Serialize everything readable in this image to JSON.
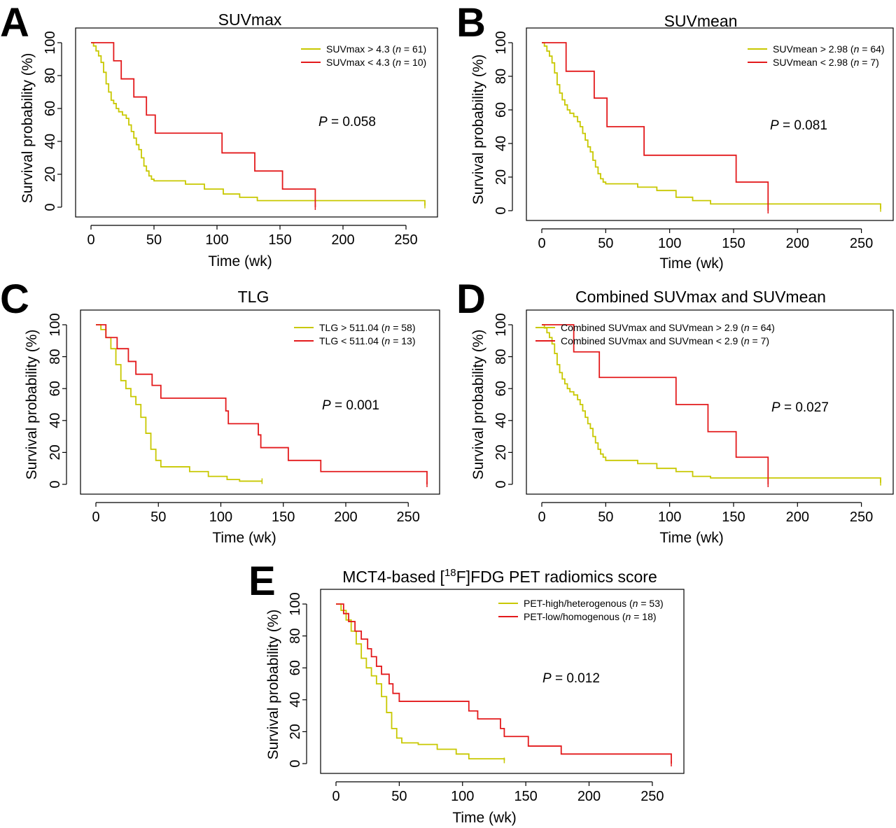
{
  "colors": {
    "high": "#C8C800",
    "low": "#E31A1C",
    "axis": "#000000"
  },
  "chart_data": [
    {
      "panel": "A",
      "type": "line",
      "title": "SUVmax",
      "xlabel": "Time (wk)",
      "ylabel": "Survival probability (%)",
      "xlim": [
        0,
        265
      ],
      "ylim": [
        0,
        100
      ],
      "xticks": [
        "0",
        "50",
        "100",
        "150",
        "200",
        "250"
      ],
      "yticks": [
        "0",
        "20",
        "40",
        "60",
        "80",
        "100"
      ],
      "legend_position": "top-right",
      "p_label": "P = 0.058",
      "series": [
        {
          "name": "SUVmax > 4.3 (n = 61)",
          "legend_pre": "SUVmax > 4.3 (",
          "legend_n": "n",
          "legend_post": " = 61)",
          "color": "#C8C800",
          "x": [
            0,
            2,
            4,
            6,
            8,
            10,
            12,
            14,
            16,
            18,
            20,
            22,
            25,
            28,
            30,
            32,
            34,
            36,
            38,
            40,
            42,
            44,
            46,
            48,
            50,
            60,
            75,
            90,
            105,
            118,
            132,
            265
          ],
          "y": [
            100,
            98,
            95,
            92,
            88,
            82,
            75,
            70,
            65,
            63,
            60,
            58,
            56,
            54,
            50,
            46,
            42,
            38,
            35,
            30,
            25,
            22,
            19,
            17,
            16,
            16,
            14,
            11,
            8,
            6,
            4,
            1
          ]
        },
        {
          "name": "SUVmax < 4.3 (n = 10)",
          "legend_pre": "SUVmax < 4.3 (",
          "legend_n": "n",
          "legend_post": " = 10)",
          "color": "#E31A1C",
          "x": [
            0,
            18,
            24,
            34,
            44,
            51,
            104,
            130,
            152,
            178
          ],
          "y": [
            100,
            89,
            78,
            67,
            56,
            45,
            33,
            22,
            11,
            0
          ]
        }
      ]
    },
    {
      "panel": "B",
      "type": "line",
      "title": "SUVmean",
      "xlabel": "Time (wk)",
      "ylabel": "Survival probability (%)",
      "xlim": [
        0,
        265
      ],
      "ylim": [
        0,
        100
      ],
      "xticks": [
        "0",
        "50",
        "100",
        "150",
        "200",
        "250"
      ],
      "yticks": [
        "0",
        "20",
        "40",
        "60",
        "80",
        "100"
      ],
      "legend_position": "top-right",
      "p_label": "P = 0.081",
      "series": [
        {
          "name": "SUVmean > 2.98 (n = 64)",
          "legend_pre": "SUVmean > 2.98 (",
          "legend_n": "n",
          "legend_post": " = 64)",
          "color": "#C8C800",
          "x": [
            0,
            2,
            4,
            6,
            8,
            10,
            12,
            14,
            16,
            18,
            20,
            22,
            25,
            28,
            30,
            32,
            34,
            36,
            38,
            40,
            42,
            44,
            46,
            48,
            50,
            60,
            75,
            90,
            105,
            118,
            132,
            265
          ],
          "y": [
            100,
            98,
            95,
            92,
            88,
            82,
            75,
            70,
            66,
            63,
            60,
            58,
            56,
            53,
            50,
            46,
            42,
            38,
            35,
            30,
            26,
            22,
            19,
            17,
            16,
            16,
            14,
            12,
            8,
            6,
            4,
            1
          ]
        },
        {
          "name": "SUVmean < 2.98 (n = 7)",
          "legend_pre": "SUVmean < 2.98 (",
          "legend_n": "n",
          "legend_post": " = 7)",
          "color": "#E31A1C",
          "x": [
            0,
            19,
            41,
            51,
            80,
            152,
            177
          ],
          "y": [
            100,
            83,
            67,
            50,
            33,
            17,
            0
          ]
        }
      ]
    },
    {
      "panel": "C",
      "type": "line",
      "title": "TLG",
      "xlabel": "Time (wk)",
      "ylabel": "Survival probability (%)",
      "xlim": [
        0,
        265
      ],
      "ylim": [
        0,
        100
      ],
      "xticks": [
        "0",
        "50",
        "100",
        "150",
        "200",
        "250"
      ],
      "yticks": [
        "0",
        "20",
        "40",
        "60",
        "80",
        "100"
      ],
      "legend_position": "top-right",
      "p_label": "P = 0.001",
      "series": [
        {
          "name": "TLG > 511.04 (n = 58)",
          "legend_pre": "TLG > 511.04 (",
          "legend_n": "n",
          "legend_post": " = 58)",
          "color": "#C8C800",
          "x": [
            0,
            4,
            8,
            12,
            16,
            20,
            24,
            28,
            32,
            36,
            40,
            44,
            48,
            52,
            60,
            75,
            90,
            105,
            115,
            133
          ],
          "y": [
            100,
            97,
            92,
            85,
            75,
            65,
            60,
            55,
            50,
            42,
            32,
            22,
            15,
            11,
            11,
            8,
            5,
            3,
            2,
            2
          ]
        },
        {
          "name": "TLG < 511.04 (n = 13)",
          "legend_pre": "TLG < 511.04 (",
          "legend_n": "n",
          "legend_post": " = 13)",
          "color": "#E31A1C",
          "x": [
            0,
            8,
            17,
            26,
            32,
            45,
            52,
            104,
            106,
            130,
            132,
            154,
            180,
            265
          ],
          "y": [
            100,
            92,
            85,
            77,
            69,
            62,
            54,
            46,
            38,
            31,
            23,
            15,
            8,
            0
          ]
        }
      ]
    },
    {
      "panel": "D",
      "type": "line",
      "title": "Combined SUVmax and SUVmean",
      "xlabel": "Time (wk)",
      "ylabel": "Survival probability (%)",
      "xlim": [
        0,
        265
      ],
      "ylim": [
        0,
        100
      ],
      "xticks": [
        "0",
        "50",
        "100",
        "150",
        "200",
        "250"
      ],
      "yticks": [
        "0",
        "20",
        "40",
        "60",
        "80",
        "100"
      ],
      "legend_position": "top-right",
      "p_label": "P = 0.027",
      "series": [
        {
          "name": "Combined SUVmax and SUVmean > 2.9 (n = 64)",
          "legend_pre": "Combined SUVmax and SUVmean > 2.9 (",
          "legend_n": "n",
          "legend_post": " = 64)",
          "color": "#C8C800",
          "x": [
            0,
            2,
            4,
            6,
            8,
            10,
            12,
            14,
            16,
            18,
            20,
            22,
            25,
            28,
            30,
            32,
            34,
            36,
            38,
            40,
            42,
            44,
            46,
            48,
            50,
            60,
            75,
            90,
            105,
            118,
            132,
            265
          ],
          "y": [
            100,
            98,
            95,
            92,
            88,
            82,
            75,
            70,
            66,
            63,
            60,
            58,
            56,
            53,
            50,
            46,
            42,
            38,
            35,
            30,
            26,
            22,
            19,
            17,
            15,
            15,
            13,
            10,
            8,
            5,
            4,
            1
          ]
        },
        {
          "name": "Combined SUVmax and SUVmean < 2.9 (n = 7)",
          "legend_pre": "Combined SUVmax and SUVmean < 2.9 (",
          "legend_n": "n",
          "legend_post": " = 7)",
          "color": "#E31A1C",
          "x": [
            0,
            25,
            45,
            105,
            130,
            152,
            177
          ],
          "y": [
            100,
            83,
            67,
            50,
            33,
            17,
            0
          ]
        }
      ]
    },
    {
      "panel": "E",
      "type": "line",
      "title": "MCT4-based [18F]FDG PET radiomics score",
      "title_pre": "MCT4-based [",
      "title_sup": "18",
      "title_post": "F]FDG PET radiomics score",
      "xlabel": "Time (wk)",
      "ylabel": "Survival probability (%)",
      "xlim": [
        0,
        265
      ],
      "ylim": [
        0,
        100
      ],
      "xticks": [
        "0",
        "50",
        "100",
        "150",
        "200",
        "250"
      ],
      "yticks": [
        "0",
        "20",
        "40",
        "60",
        "80",
        "100"
      ],
      "legend_position": "top-right",
      "p_label": "P = 0.012",
      "series": [
        {
          "name": "PET-high/heterogenous (n = 53)",
          "legend_pre": "PET-high/heterogenous (",
          "legend_n": "n",
          "legend_post": " = 53)",
          "color": "#C8C800",
          "x": [
            0,
            4,
            8,
            12,
            16,
            20,
            24,
            28,
            32,
            36,
            40,
            44,
            48,
            52,
            65,
            80,
            95,
            105,
            133
          ],
          "y": [
            100,
            96,
            90,
            83,
            75,
            66,
            60,
            55,
            50,
            42,
            32,
            22,
            16,
            13,
            12,
            9,
            6,
            3,
            2
          ]
        },
        {
          "name": "PET-low/homogenous (n = 18)",
          "legend_pre": "PET-low/homogenous (",
          "legend_n": "n",
          "legend_post": " = 18)",
          "color": "#E31A1C",
          "x": [
            0,
            6,
            10,
            15,
            20,
            25,
            28,
            32,
            36,
            42,
            45,
            50,
            105,
            112,
            130,
            133,
            152,
            178,
            265
          ],
          "y": [
            100,
            94,
            89,
            83,
            78,
            72,
            67,
            61,
            56,
            50,
            44,
            39,
            33,
            28,
            22,
            17,
            11,
            6,
            0
          ]
        }
      ]
    }
  ]
}
